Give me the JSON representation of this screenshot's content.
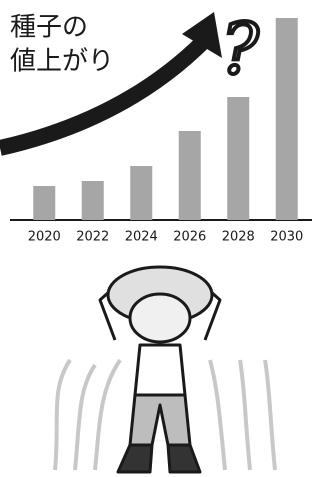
{
  "chart_data": {
    "type": "bar",
    "title_lines": [
      "種子の",
      "値上がり"
    ],
    "annotation": "?",
    "categories": [
      "2020",
      "2022",
      "2024",
      "2026",
      "2028",
      "2030"
    ],
    "values": [
      34,
      39,
      54,
      89,
      123,
      202
    ],
    "color": "#a6a6a6",
    "ylim": [
      0,
      210
    ]
  }
}
